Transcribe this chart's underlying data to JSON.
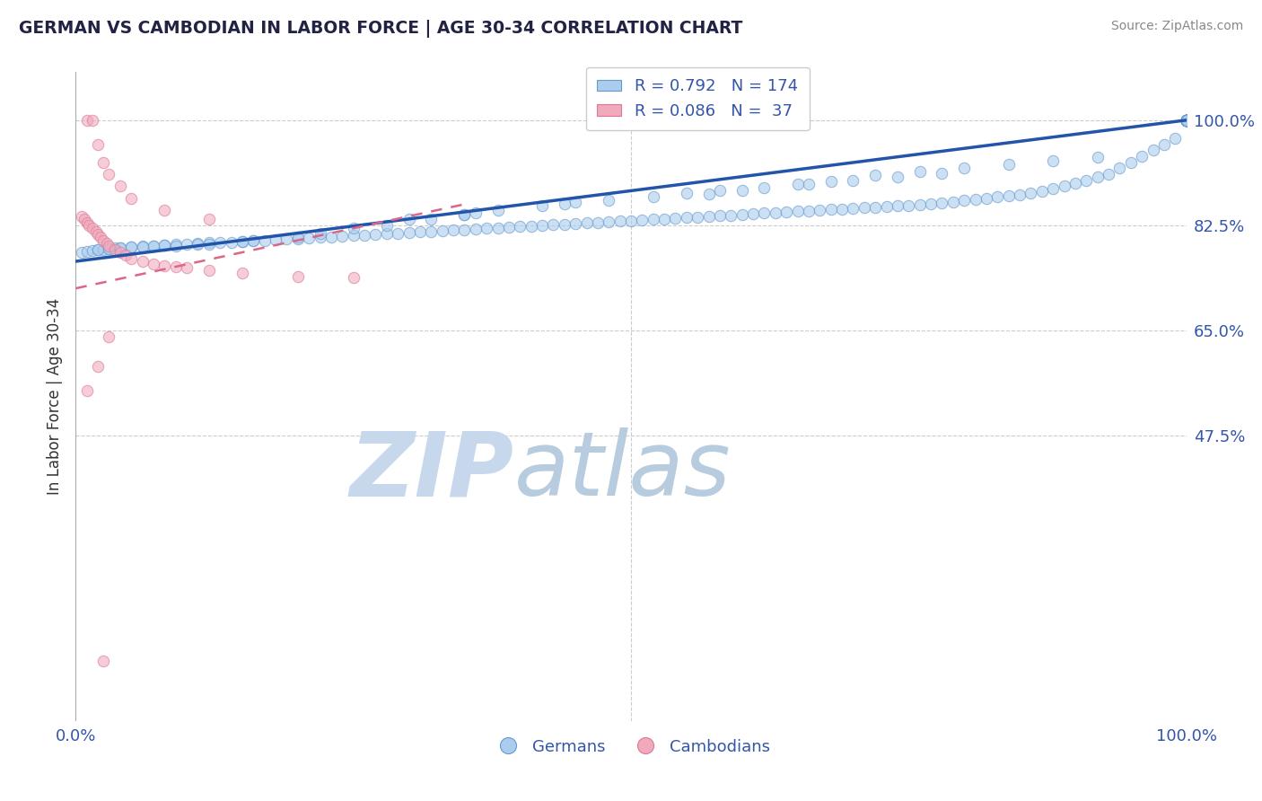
{
  "title": "GERMAN VS CAMBODIAN IN LABOR FORCE | AGE 30-34 CORRELATION CHART",
  "source_text": "Source: ZipAtlas.com",
  "ylabel": "In Labor Force | Age 30-34",
  "xlim": [
    0.0,
    1.0
  ],
  "ylim": [
    0.0,
    1.08
  ],
  "ytick_labels": [
    "100.0%",
    "82.5%",
    "65.0%",
    "47.5%"
  ],
  "ytick_positions": [
    1.0,
    0.825,
    0.65,
    0.475
  ],
  "xtick_positions": [
    0.0,
    0.5,
    1.0
  ],
  "xtick_labels": [
    "0.0%",
    "",
    "100.0%"
  ],
  "background_color": "#ffffff",
  "german_color": "#6699cc",
  "german_fill": "#aaccee",
  "cambodian_color": "#dd7799",
  "cambodian_fill": "#f0aabb",
  "german_trend_color": "#2255aa",
  "cambodian_trend_color": "#dd6688",
  "german_R": 0.792,
  "german_N": 174,
  "cambodian_R": 0.086,
  "cambodian_N": 37,
  "legend_label_german": "Germans",
  "legend_label_cambodian": "Cambodians",
  "title_color": "#222244",
  "axis_label_color": "#334488",
  "tick_color": "#3355aa",
  "source_color": "#888888",
  "grid_color": "#cccccc",
  "grid_style": "--",
  "scatter_alpha": 0.6,
  "scatter_size": 80,
  "watermark_zip_color": "#c8d8ec",
  "watermark_atlas_color": "#b8cce0",
  "german_scatter_x": [
    0.005,
    0.01,
    0.015,
    0.02,
    0.025,
    0.03,
    0.035,
    0.04,
    0.05,
    0.06,
    0.07,
    0.08,
    0.09,
    0.1,
    0.11,
    0.12,
    0.13,
    0.14,
    0.15,
    0.16,
    0.17,
    0.18,
    0.19,
    0.2,
    0.21,
    0.22,
    0.23,
    0.24,
    0.25,
    0.26,
    0.27,
    0.28,
    0.29,
    0.3,
    0.31,
    0.32,
    0.33,
    0.34,
    0.35,
    0.36,
    0.37,
    0.38,
    0.39,
    0.4,
    0.41,
    0.42,
    0.43,
    0.44,
    0.45,
    0.46,
    0.47,
    0.48,
    0.49,
    0.5,
    0.51,
    0.52,
    0.53,
    0.54,
    0.55,
    0.56,
    0.57,
    0.58,
    0.59,
    0.6,
    0.61,
    0.62,
    0.63,
    0.64,
    0.65,
    0.66,
    0.67,
    0.68,
    0.69,
    0.7,
    0.71,
    0.72,
    0.73,
    0.74,
    0.75,
    0.76,
    0.77,
    0.78,
    0.79,
    0.8,
    0.81,
    0.82,
    0.83,
    0.84,
    0.85,
    0.86,
    0.87,
    0.88,
    0.89,
    0.9,
    0.91,
    0.92,
    0.93,
    0.94,
    0.95,
    0.96,
    0.97,
    0.98,
    0.99,
    1.0,
    1.0,
    1.0,
    1.0,
    1.0,
    1.0,
    1.0,
    1.0,
    1.0,
    1.0,
    1.0,
    1.0,
    1.0,
    1.0,
    1.0,
    1.0,
    1.0,
    1.0,
    1.0,
    1.0,
    1.0,
    1.0,
    1.0,
    1.0,
    1.0,
    1.0,
    1.0,
    0.55,
    0.58,
    0.62,
    0.65,
    0.68,
    0.52,
    0.48,
    0.44,
    0.38,
    0.35,
    0.3,
    0.72,
    0.76,
    0.8,
    0.84,
    0.88,
    0.92,
    0.78,
    0.74,
    0.7,
    0.66,
    0.6,
    0.57,
    0.42,
    0.32,
    0.22,
    0.16,
    0.11,
    0.08,
    0.05,
    0.02,
    0.25,
    0.35,
    0.45,
    0.36,
    0.28,
    0.2,
    0.15,
    0.12,
    0.09,
    0.07,
    0.06,
    0.04,
    0.03
  ],
  "german_scatter_y": [
    0.78,
    0.782,
    0.783,
    0.784,
    0.785,
    0.786,
    0.787,
    0.788,
    0.789,
    0.79,
    0.791,
    0.792,
    0.793,
    0.794,
    0.795,
    0.796,
    0.797,
    0.797,
    0.798,
    0.799,
    0.8,
    0.801,
    0.802,
    0.803,
    0.804,
    0.805,
    0.806,
    0.807,
    0.808,
    0.809,
    0.81,
    0.811,
    0.812,
    0.813,
    0.814,
    0.815,
    0.816,
    0.817,
    0.818,
    0.819,
    0.82,
    0.821,
    0.822,
    0.823,
    0.824,
    0.825,
    0.826,
    0.827,
    0.828,
    0.829,
    0.83,
    0.831,
    0.832,
    0.833,
    0.834,
    0.835,
    0.836,
    0.837,
    0.838,
    0.839,
    0.84,
    0.841,
    0.842,
    0.843,
    0.844,
    0.845,
    0.846,
    0.847,
    0.848,
    0.849,
    0.85,
    0.851,
    0.852,
    0.853,
    0.854,
    0.855,
    0.856,
    0.857,
    0.858,
    0.859,
    0.86,
    0.862,
    0.864,
    0.866,
    0.868,
    0.87,
    0.872,
    0.874,
    0.876,
    0.878,
    0.882,
    0.886,
    0.89,
    0.895,
    0.9,
    0.905,
    0.91,
    0.92,
    0.93,
    0.94,
    0.95,
    0.96,
    0.97,
    1.0,
    1.0,
    1.0,
    1.0,
    1.0,
    1.0,
    1.0,
    1.0,
    1.0,
    1.0,
    1.0,
    1.0,
    1.0,
    1.0,
    1.0,
    1.0,
    1.0,
    1.0,
    1.0,
    1.0,
    1.0,
    1.0,
    1.0,
    1.0,
    1.0,
    1.0,
    1.0,
    0.878,
    0.883,
    0.888,
    0.893,
    0.898,
    0.872,
    0.867,
    0.86,
    0.85,
    0.843,
    0.836,
    0.909,
    0.915,
    0.92,
    0.926,
    0.932,
    0.938,
    0.912,
    0.906,
    0.9,
    0.893,
    0.883,
    0.877,
    0.858,
    0.835,
    0.812,
    0.8,
    0.793,
    0.792,
    0.789,
    0.784,
    0.82,
    0.843,
    0.863,
    0.845,
    0.825,
    0.806,
    0.798,
    0.794,
    0.791,
    0.79,
    0.789,
    0.788,
    0.786
  ],
  "cambodian_scatter_x": [
    0.005,
    0.008,
    0.01,
    0.012,
    0.015,
    0.018,
    0.02,
    0.022,
    0.025,
    0.028,
    0.03,
    0.035,
    0.04,
    0.045,
    0.05,
    0.06,
    0.07,
    0.08,
    0.09,
    0.1,
    0.12,
    0.15,
    0.2,
    0.25,
    0.01,
    0.015,
    0.02,
    0.025,
    0.03,
    0.04,
    0.05,
    0.08,
    0.12,
    0.03,
    0.02,
    0.01,
    0.025
  ],
  "cambodian_scatter_y": [
    0.84,
    0.835,
    0.83,
    0.825,
    0.82,
    0.815,
    0.81,
    0.805,
    0.8,
    0.795,
    0.79,
    0.785,
    0.78,
    0.775,
    0.77,
    0.765,
    0.76,
    0.758,
    0.756,
    0.755,
    0.75,
    0.745,
    0.74,
    0.738,
    1.0,
    1.0,
    0.96,
    0.93,
    0.91,
    0.89,
    0.87,
    0.85,
    0.835,
    0.64,
    0.59,
    0.55,
    0.1
  ],
  "german_trend_x": [
    0.0,
    1.0
  ],
  "german_trend_y": [
    0.765,
    1.0
  ],
  "cambodian_trend_x": [
    0.0,
    0.35
  ],
  "cambodian_trend_y": [
    0.72,
    0.86
  ]
}
